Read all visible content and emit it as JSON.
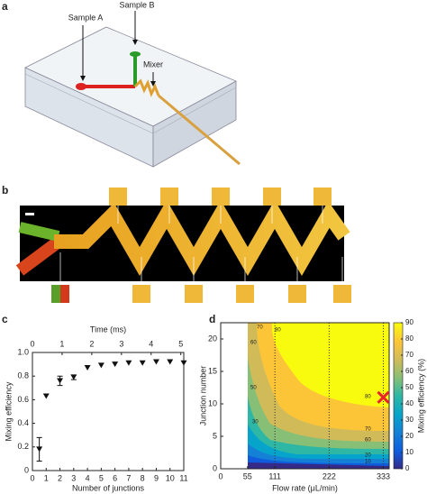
{
  "panel_a": {
    "label": "a",
    "sample_a": "Sample A",
    "sample_b": "Sample B",
    "mixer": "Mixer"
  },
  "panel_b": {
    "label": "b"
  },
  "chart_data": [
    {
      "type": "scatter",
      "panel_label": "c",
      "xlabel": "Number of junctions",
      "x2label": "Time (ms)",
      "ylabel": "Mixing efficiency",
      "x": [
        0.5,
        1,
        2,
        3,
        4,
        5,
        6,
        7,
        8,
        9,
        10,
        11
      ],
      "values": [
        0.18,
        0.63,
        0.76,
        0.79,
        0.87,
        0.89,
        0.9,
        0.91,
        0.91,
        0.92,
        0.92,
        0.91
      ],
      "errors": [
        0.1,
        null,
        0.04,
        0.02,
        null,
        null,
        null,
        null,
        null,
        null,
        null,
        null
      ],
      "color": "#111",
      "xlim": [
        0,
        11
      ],
      "xticks": [
        0,
        1,
        2,
        3,
        4,
        5,
        6,
        7,
        8,
        9,
        10,
        11
      ],
      "x2lim": [
        0,
        5.1
      ],
      "x2ticks": [
        0,
        1,
        2,
        3,
        4,
        5
      ],
      "ylim": [
        0,
        1
      ],
      "yticks": [
        0,
        0.2,
        0.4,
        0.6,
        0.8,
        {
          "value": 1,
          "label": "1.0"
        }
      ]
    },
    {
      "type": "contour",
      "panel_label": "d",
      "xlabel": "Flow rate (μL/min)",
      "ylabel": "Junction number",
      "colorbar_label": "Mixing efficiency (%)",
      "xlim": [
        0,
        345
      ],
      "xticks": [
        0,
        55,
        111,
        222,
        333
      ],
      "dotted_x": [
        111,
        222,
        333
      ],
      "ylim": [
        0,
        22.5
      ],
      "yticks": [
        0,
        5,
        10,
        15,
        20
      ],
      "clim": [
        0,
        90
      ],
      "cticks": [
        0,
        10,
        20,
        30,
        40,
        50,
        60,
        70,
        80,
        90
      ],
      "contour_labels": [
        "70",
        "80",
        "60",
        "80",
        "70",
        "60",
        "50",
        "30",
        "20",
        "10"
      ],
      "marker": {
        "x": 333,
        "y": 11,
        "color": "#e8232a"
      }
    }
  ]
}
